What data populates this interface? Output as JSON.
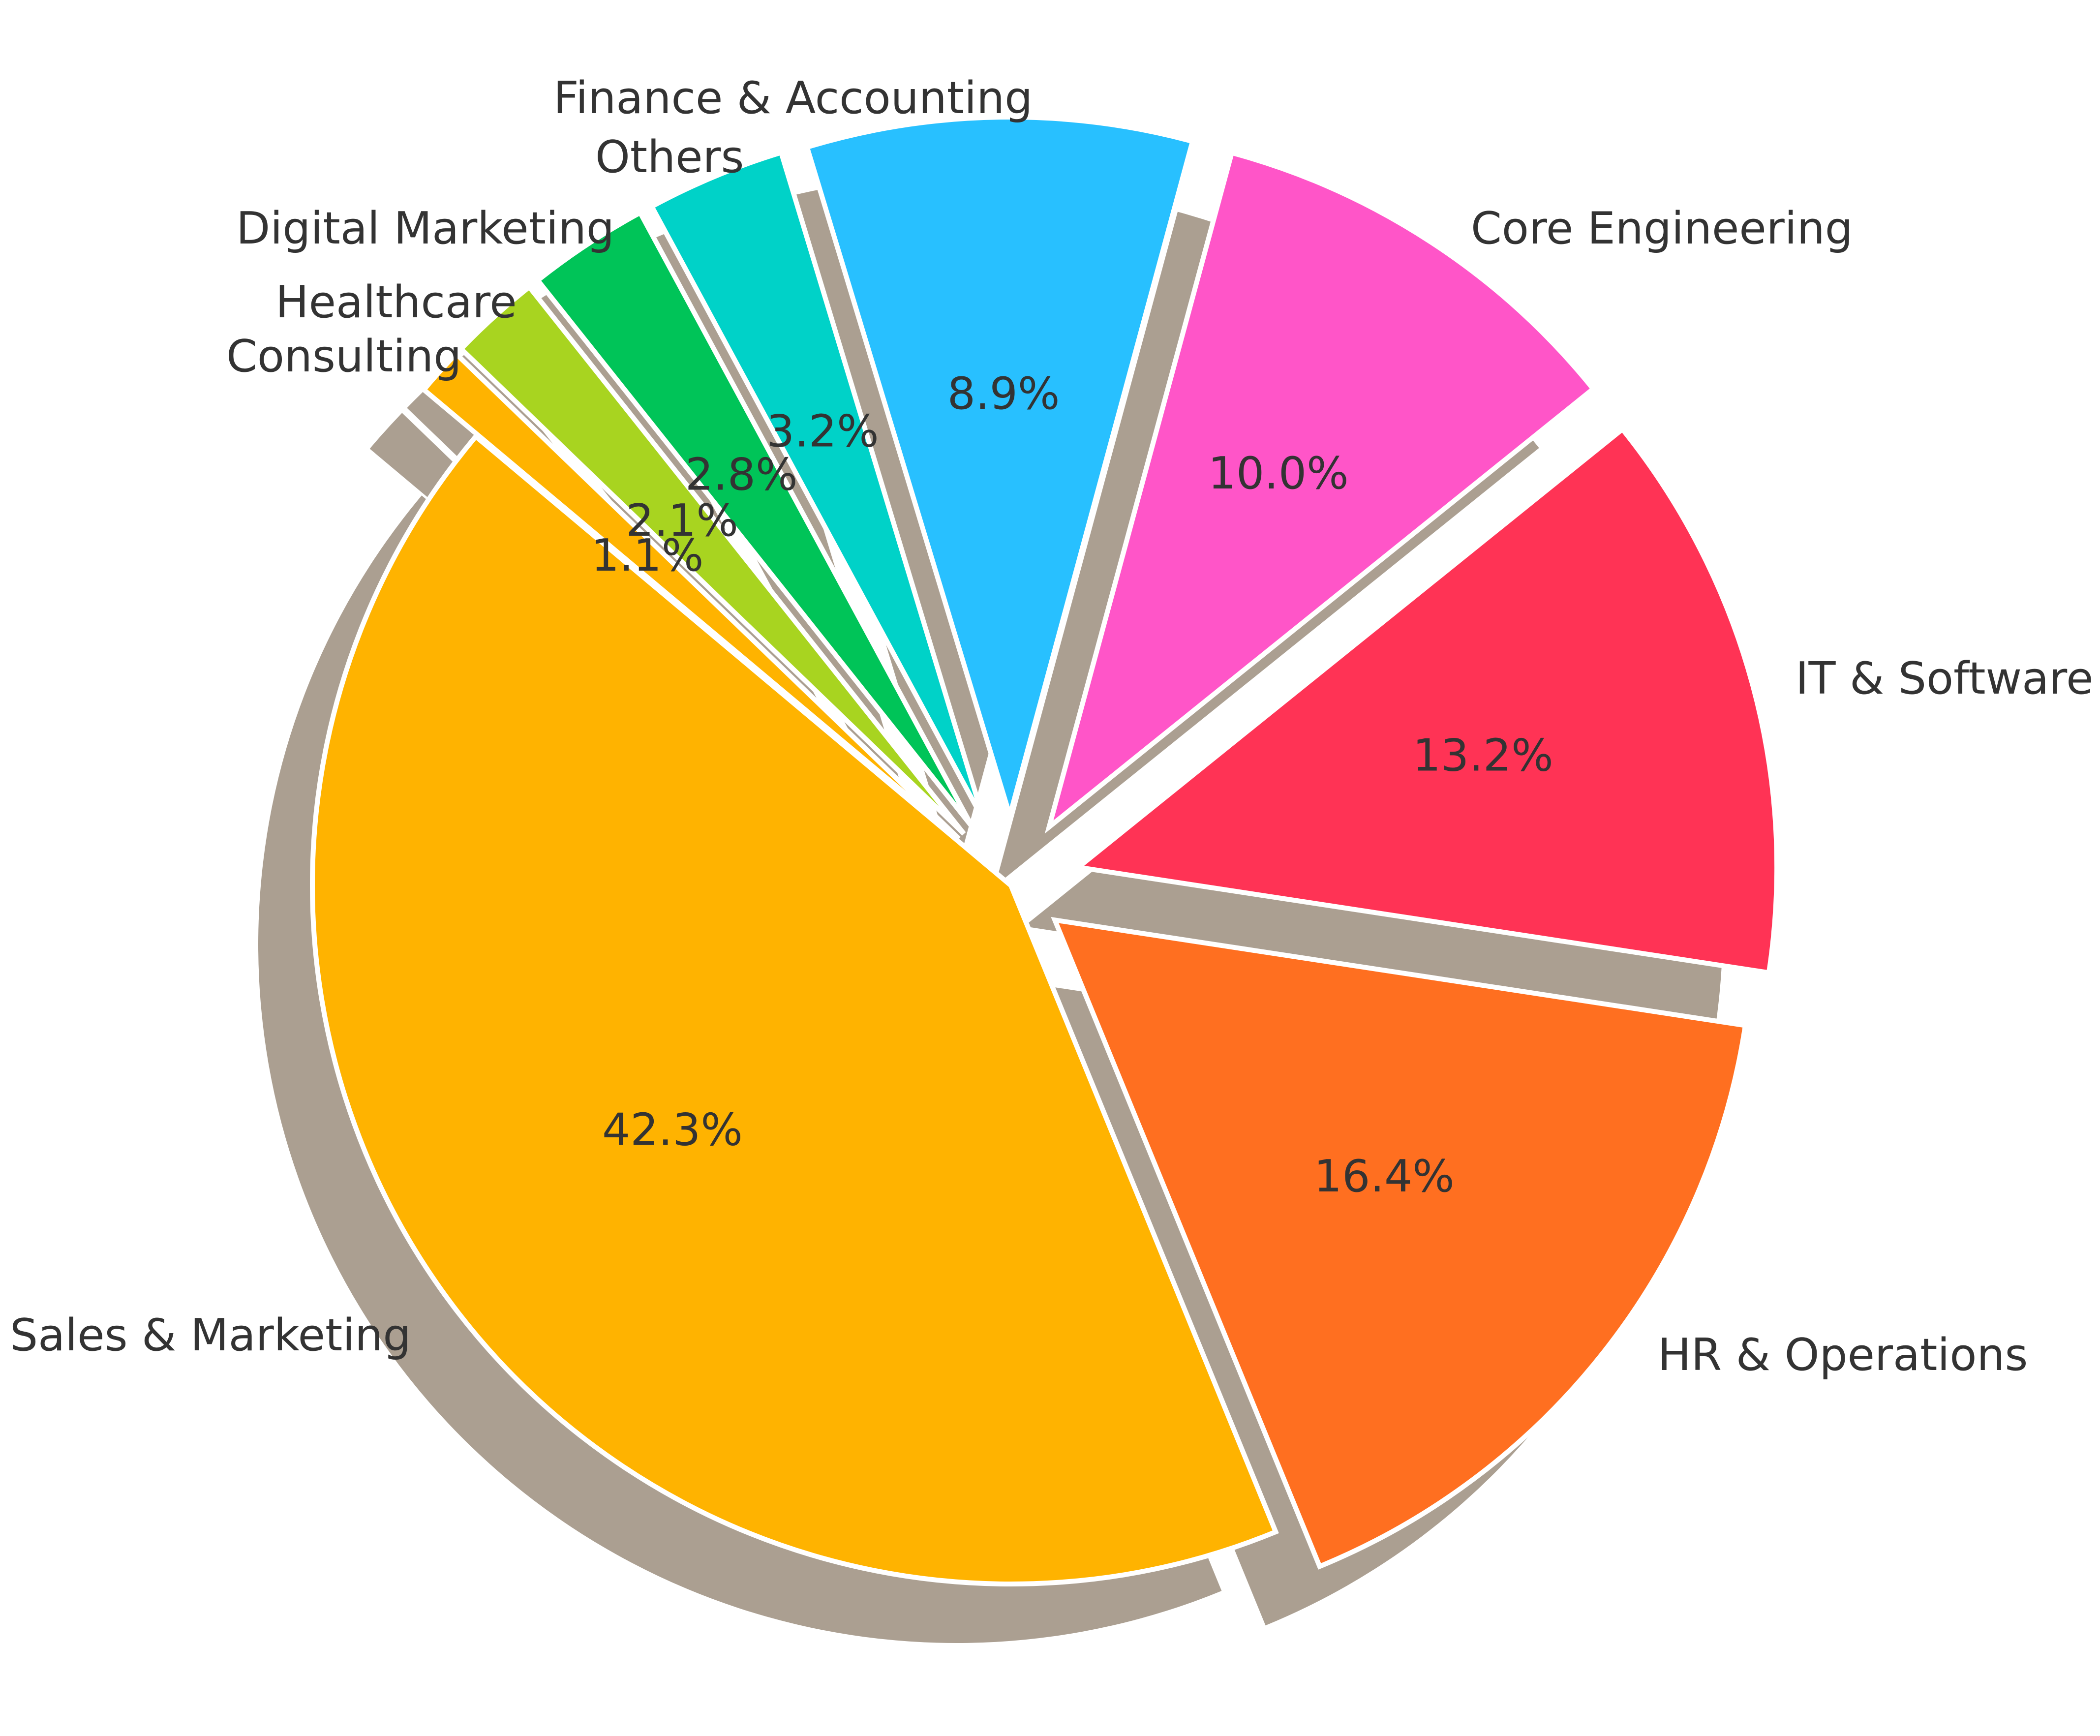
{
  "chart_data": {
    "type": "pie",
    "title": "",
    "legend": "none",
    "shadow": true,
    "slices": [
      {
        "label": "Sales & Marketing",
        "value": 42.3,
        "pct_label": "42.3%",
        "color": "#FFB300",
        "explode": 0.0
      },
      {
        "label": "HR & Operations",
        "value": 16.4,
        "pct_label": "16.4%",
        "color": "#FF6F20",
        "explode": 0.08
      },
      {
        "label": "IT & Software",
        "value": 13.2,
        "pct_label": "13.2%",
        "color": "#FF3355",
        "explode": 0.1
      },
      {
        "label": "Core Engineering",
        "value": 10.0,
        "pct_label": "10.0%",
        "color": "#FF55C8",
        "explode": 0.1
      },
      {
        "label": "Finance & Accounting",
        "value": 8.9,
        "pct_label": "8.9%",
        "color": "#28C0FF",
        "explode": 0.1
      },
      {
        "label": "Others",
        "value": 3.2,
        "pct_label": "3.2%",
        "color": "#00D2C8",
        "explode": 0.1
      },
      {
        "label": "Digital Marketing",
        "value": 2.8,
        "pct_label": "2.8%",
        "color": "#00C458",
        "explode": 0.1
      },
      {
        "label": "Healthcare",
        "value": 2.1,
        "pct_label": "2.1%",
        "color": "#A8D420",
        "explode": 0.1
      },
      {
        "label": "Consulting",
        "value": 1.1,
        "pct_label": "1.1%",
        "color": "#FFB300",
        "explode": 0.1
      }
    ]
  }
}
